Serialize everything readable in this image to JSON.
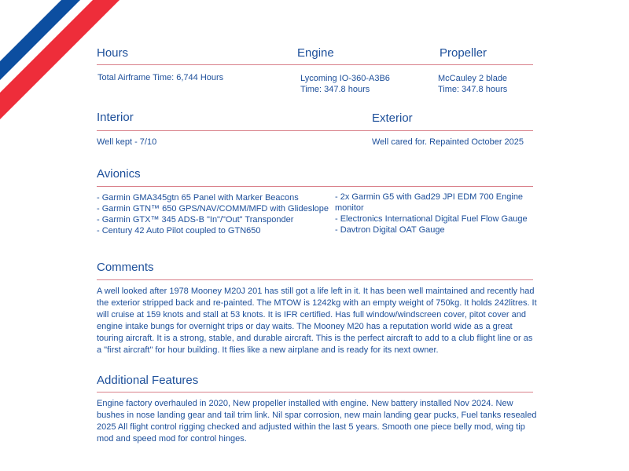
{
  "colors": {
    "text": "#1d4f9a",
    "stripe_blue": "#0c4ea0",
    "stripe_red": "#ee2d3a",
    "rule": "#d9808a"
  },
  "hours": {
    "heading": "Hours",
    "value": "Total Airframe Time: 6,744 Hours"
  },
  "engine": {
    "heading": "Engine",
    "model": "Lycoming IO-360-A3B6",
    "time": "Time: 347.8 hours"
  },
  "propeller": {
    "heading": "Propeller",
    "model": "McCauley 2 blade",
    "time": "Time: 347.8 hours"
  },
  "interior": {
    "heading": "Interior",
    "value": "Well kept - 7/10"
  },
  "exterior": {
    "heading": "Exterior",
    "value": "Well cared for. Repainted October 2025"
  },
  "avionics": {
    "heading": "Avionics",
    "left": [
      "- Garmin GMA345gtn 65 Panel with Marker Beacons",
      "- Garmin GTN™ 650 GPS/NAV/COMM/MFD with Glideslope",
      "- Garmin GTX™ 345 ADS-B \"In\"/\"Out\" Transponder",
      "- Century 42 Auto Pilot coupled to GTN650"
    ],
    "right": [
      "- 2x Garmin G5 with Gad29 JPI EDM 700 Engine monitor",
      "- Electronics International Digital Fuel Flow Gauge",
      "- Davtron Digital OAT Gauge"
    ]
  },
  "comments": {
    "heading": "Comments",
    "text": "A well looked after 1978 Mooney M20J 201 has still got a life left in it. It has been well maintained and recently had the exterior stripped back and re-painted. The MTOW is 1242kg with an empty weight of 750kg. It holds 242litres. It will cruise at 159 knots and stall at 53 knots. It is IFR certified. Has full window/windscreen cover, pitot cover and engine intake bungs for overnight trips or day waits. The Mooney M20 has a reputation world wide as a great touring aircraft. It is a strong, stable, and durable aircraft. This is the perfect aircraft to add to a club flight line or as a \"first aircraft\" for hour building. It flies like a new airplane and is ready for its next owner."
  },
  "additional": {
    "heading": "Additional Features",
    "text": "Engine factory overhauled in 2020, New propeller installed with engine. New battery installed Nov 2024. New bushes in nose landing gear and tail trim link. Nil spar corrosion, new main landing gear pucks, Fuel tanks resealed 2025 All flight control rigging checked and adjusted within the last 5 years. Smooth one piece belly mod, wing tip mod and speed mod for control hinges."
  }
}
